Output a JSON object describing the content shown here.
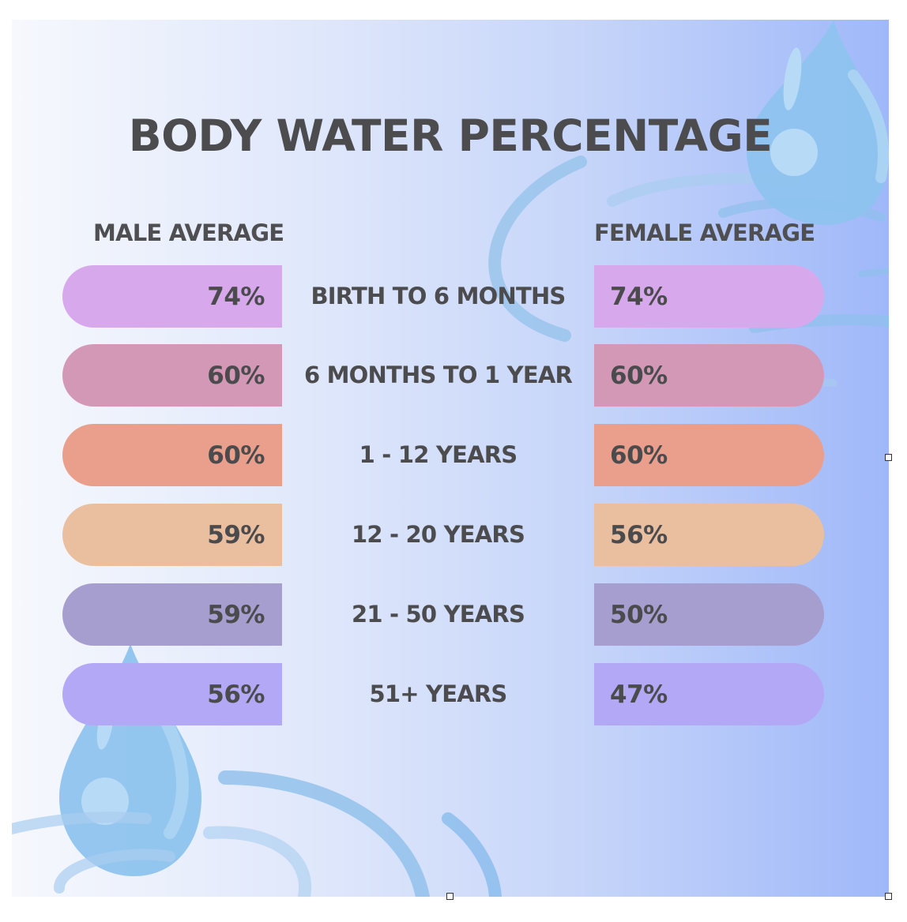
{
  "chart_data": {
    "type": "table",
    "title": "BODY WATER PERCENTAGE",
    "columns": [
      "MALE AVERAGE",
      "",
      "FEMALE AVERAGE"
    ],
    "rows": [
      {
        "age": "BIRTH TO 6 MONTHS",
        "male": "74%",
        "female": "74%",
        "color": "#d7a9ec"
      },
      {
        "age": "6 MONTHS TO 1 YEAR",
        "male": "60%",
        "female": "60%",
        "color": "#d498b7"
      },
      {
        "age": "1 - 12 YEARS",
        "male": "60%",
        "female": "60%",
        "color": "#e99f8b"
      },
      {
        "age": "12 - 20 YEARS",
        "male": "59%",
        "female": "56%",
        "color": "#e9bfa0"
      },
      {
        "age": "21 - 50 YEARS",
        "male": "59%",
        "female": "50%",
        "color": "#a69ece"
      },
      {
        "age": "51+ YEARS",
        "male": "56%",
        "female": "47%",
        "color": "#b3a8f5"
      }
    ]
  },
  "colors": {
    "text": "#4c4c4f",
    "drop_fill": "#8ec3ee",
    "ripple": "#93c1ea"
  },
  "decorations": [
    "water-drop-icon",
    "water-ripple"
  ]
}
